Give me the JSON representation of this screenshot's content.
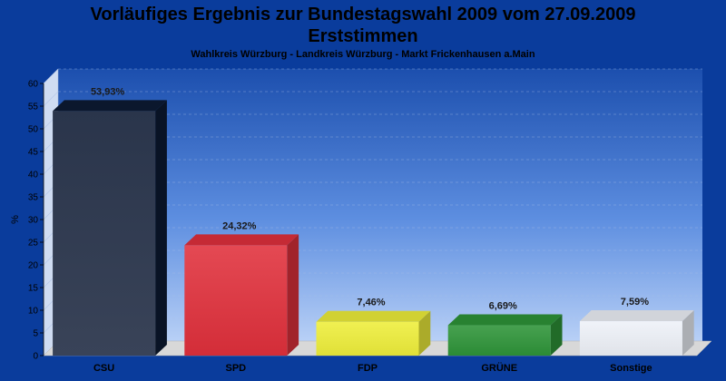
{
  "chart_data": {
    "type": "bar",
    "title": "Vorläufiges Ergebnis zur Bundestagswahl 2009 vom 27.09.2009",
    "title_line2": "Erststimmen",
    "subtitle": "Wahlkreis Würzburg - Landkreis Würzburg - Markt Frickenhausen a.Main",
    "ylabel": "%",
    "ylim": [
      0,
      60
    ],
    "yticks": [
      0,
      5,
      10,
      15,
      20,
      25,
      30,
      35,
      40,
      45,
      50,
      55,
      60
    ],
    "categories": [
      "CSU",
      "SPD",
      "FDP",
      "GRÜNE",
      "Sonstige"
    ],
    "values": [
      53.93,
      24.32,
      7.46,
      6.69,
      7.59
    ],
    "value_labels": [
      "53,93%",
      "24,32%",
      "7,46%",
      "6,69%",
      "7,59%"
    ],
    "colors": [
      "#0d1a33",
      "#e0303c",
      "#eeee3a",
      "#2e9438",
      "#eef1f8"
    ],
    "grid": true
  }
}
